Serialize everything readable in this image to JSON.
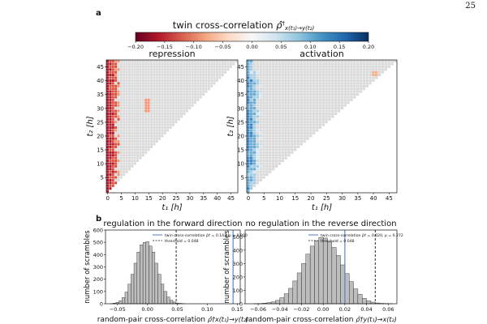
{
  "page_number": "25",
  "panel_a_label": "a",
  "panel_b_label": "b",
  "colorbar": {
    "title": "twin cross-correlation",
    "symbol": "ρ̂",
    "dagger": "†",
    "subscript": "x(t₁)→y(t₂)",
    "ticks": [
      "−0.20",
      "−0.15",
      "−0.10",
      "−0.05",
      "0.00",
      "0.05",
      "0.10",
      "0.15",
      "0.20"
    ],
    "colors": [
      "#67001f",
      "#b2182b",
      "#d6604d",
      "#f4a582",
      "#fddbc7",
      "#f7f7f7",
      "#d1e5f0",
      "#92c5de",
      "#4393c3",
      "#2166ac",
      "#053061"
    ]
  },
  "heatmaps": [
    {
      "name": "repression",
      "title": "repression",
      "xlabel": "t₁ [h]",
      "ylabel": "t₂ [h]",
      "xticks": [
        "0",
        "5",
        "10",
        "15",
        "20",
        "25",
        "30",
        "35",
        "40",
        "45"
      ],
      "yticks": [
        "5",
        "10",
        "15",
        "20",
        "25",
        "30",
        "35",
        "40",
        "45"
      ],
      "grid_color": "#dadada",
      "accent": "#c03b2b"
    },
    {
      "name": "activation",
      "title": "activation",
      "xlabel": "t₁ [h]",
      "ylabel": "t₂ [h]",
      "xticks": [
        "0",
        "5",
        "10",
        "15",
        "20",
        "25",
        "30",
        "35",
        "40",
        "45"
      ],
      "yticks": [
        "5",
        "10",
        "15",
        "20",
        "25",
        "30",
        "35",
        "40",
        "45"
      ],
      "grid_color": "#dadada",
      "accent": "#4b92c8"
    }
  ],
  "chart_data": [
    {
      "type": "bar",
      "title": "regulation in the forward direction",
      "xlabel": "random-pair cross-correlation",
      "xlabel_math": "ρ̂†x(t₁)→y(t₂)",
      "ylabel": "number of scrambles",
      "xlim": [
        -0.07,
        0.155
      ],
      "ylim": [
        0,
        600
      ],
      "xticks": [
        "−0.05",
        "0.00",
        "0.05",
        "0.10",
        "0.15"
      ],
      "xtick_values": [
        -0.05,
        0.0,
        0.05,
        0.1,
        0.15
      ],
      "yticks": [
        "0",
        "100",
        "200",
        "300",
        "400",
        "500",
        "600"
      ],
      "ytick_values": [
        0,
        100,
        200,
        300,
        400,
        500,
        600
      ],
      "bin_centers": [
        -0.06,
        -0.055,
        -0.05,
        -0.045,
        -0.04,
        -0.035,
        -0.03,
        -0.025,
        -0.02,
        -0.015,
        -0.01,
        -0.005,
        0.0,
        0.005,
        0.01,
        0.015,
        0.02,
        0.025,
        0.03,
        0.035,
        0.04,
        0.045,
        0.05,
        0.055,
        0.06
      ],
      "counts": [
        2,
        5,
        12,
        25,
        50,
        95,
        160,
        240,
        330,
        420,
        480,
        500,
        505,
        470,
        420,
        330,
        240,
        160,
        100,
        55,
        28,
        14,
        6,
        3,
        1
      ],
      "twin_value": 0.143,
      "threshold_value": 0.048,
      "legend": [
        "twin cross-correlation ρ̂† = 0.143, p = 0.000",
        "threshold = 0.048"
      ]
    },
    {
      "type": "bar",
      "title": "no regulation in the reverse direction",
      "xlabel": "random-pair cross-correlation",
      "xlabel_math": "ρ̂†y(t₁)→x(t₂)",
      "ylabel": "number of scrambles",
      "xlim": [
        -0.072,
        0.068
      ],
      "ylim": [
        0,
        550
      ],
      "xticks": [
        "−0.06",
        "−0.04",
        "−0.02",
        "0.00",
        "0.02",
        "0.04",
        "0.06"
      ],
      "xtick_values": [
        -0.06,
        -0.04,
        -0.02,
        0.0,
        0.02,
        0.04,
        0.06
      ],
      "yticks": [
        "0",
        "100",
        "200",
        "300",
        "400",
        "500"
      ],
      "ytick_values": [
        0,
        100,
        200,
        300,
        400,
        500
      ],
      "bin_centers": [
        -0.062,
        -0.058,
        -0.054,
        -0.05,
        -0.046,
        -0.042,
        -0.038,
        -0.034,
        -0.03,
        -0.026,
        -0.022,
        -0.018,
        -0.014,
        -0.01,
        -0.006,
        -0.002,
        0.002,
        0.006,
        0.01,
        0.014,
        0.018,
        0.022,
        0.026,
        0.03,
        0.034,
        0.038,
        0.042,
        0.046,
        0.05,
        0.054,
        0.058,
        0.062
      ],
      "counts": [
        1,
        2,
        4,
        8,
        14,
        25,
        45,
        75,
        115,
        170,
        230,
        300,
        370,
        430,
        470,
        495,
        490,
        465,
        420,
        360,
        290,
        225,
        165,
        110,
        70,
        40,
        22,
        12,
        6,
        3,
        2,
        1
      ],
      "twin_value": 0.02,
      "threshold_value": 0.048,
      "legend": [
        "twin cross-correlation ρ̂† = 0.020, p = 0.272",
        "threshold = 0.048"
      ]
    }
  ]
}
